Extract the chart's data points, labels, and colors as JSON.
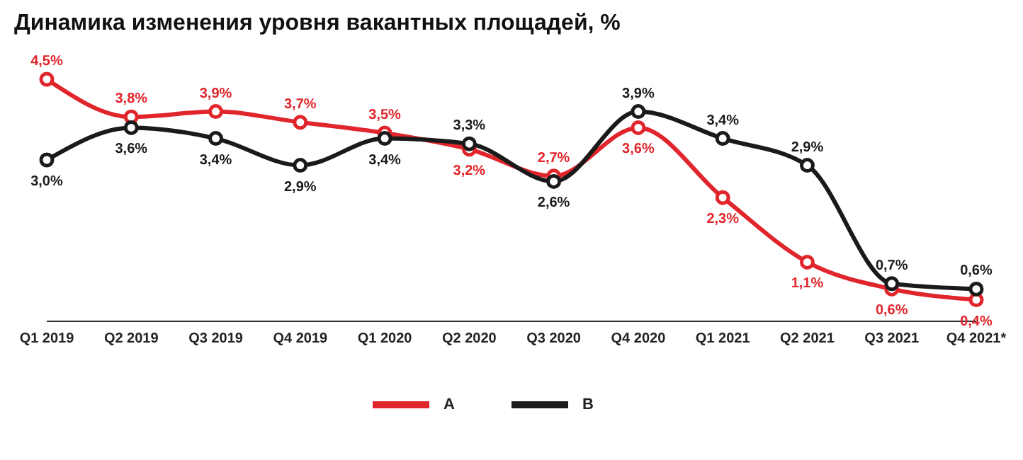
{
  "chart_data": {
    "type": "line",
    "title": "Динамика изменения уровня вакантных площадей, %",
    "categories": [
      "Q1 2019",
      "Q2 2019",
      "Q3 2019",
      "Q4 2019",
      "Q1 2020",
      "Q2 2020",
      "Q3 2020",
      "Q4 2020",
      "Q1 2021",
      "Q2 2021",
      "Q3 2021",
      "Q4 2021*"
    ],
    "series": [
      {
        "name": "A",
        "color": "#e0262c",
        "values": [
          4.5,
          3.8,
          3.9,
          3.7,
          3.5,
          3.2,
          2.7,
          3.6,
          2.3,
          1.1,
          0.6,
          0.4
        ],
        "value_labels": [
          "4,5%",
          "3,8%",
          "3,9%",
          "3,7%",
          "3,5%",
          "3,2%",
          "2,7%",
          "3,6%",
          "2,3%",
          "1,1%",
          "0,6%",
          "0,4%"
        ]
      },
      {
        "name": "B",
        "color": "#1a1a1a",
        "values": [
          3.0,
          3.6,
          3.4,
          2.9,
          3.4,
          3.3,
          2.6,
          3.9,
          3.4,
          2.9,
          0.7,
          0.6
        ],
        "value_labels": [
          "3,0%",
          "3,6%",
          "3,4%",
          "2,9%",
          "3,4%",
          "3,3%",
          "2,6%",
          "3,9%",
          "3,4%",
          "2,9%",
          "0,7%",
          "0,6%"
        ]
      }
    ],
    "marker": "circle",
    "line_style": "solid",
    "grid": false,
    "legend": "bottom"
  }
}
